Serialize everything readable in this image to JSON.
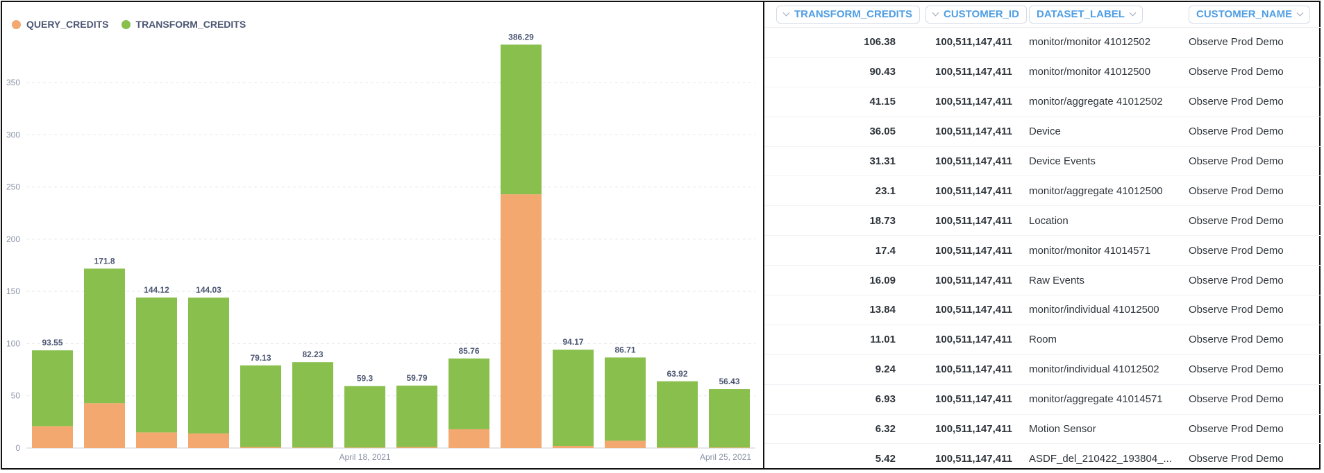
{
  "colors": {
    "query": "#f2a86f",
    "transform": "#88bf4d",
    "header_text": "#509ee3",
    "axis_text": "#8a93a6"
  },
  "chart_data": {
    "type": "bar",
    "stacked": true,
    "legend": [
      "QUERY_CREDITS",
      "TRANSFORM_CREDITS"
    ],
    "legend_position": "top-left",
    "x_tick_labels": [
      {
        "index": 6.5,
        "label": "April 18, 2021"
      },
      {
        "index": 13.5,
        "label": "April 25, 2021"
      }
    ],
    "ylim": [
      0,
      370
    ],
    "yticks": [
      0,
      50,
      100,
      150,
      200,
      250,
      300,
      350
    ],
    "grid": true,
    "totals": [
      93.55,
      171.8,
      144.12,
      144.03,
      79.13,
      82.23,
      59.3,
      59.79,
      85.76,
      386.29,
      94.17,
      86.71,
      63.92,
      56.43
    ],
    "series": [
      {
        "name": "QUERY_CREDITS",
        "values": [
          21,
          43,
          15,
          14,
          1,
          0.5,
          0.5,
          1,
          18,
          243,
          2,
          7,
          0.5,
          0.5
        ]
      },
      {
        "name": "TRANSFORM_CREDITS",
        "values": [
          72.55,
          128.8,
          129.12,
          130.03,
          78.13,
          81.73,
          58.8,
          58.79,
          67.76,
          143.29,
          92.17,
          79.71,
          63.42,
          55.93
        ]
      }
    ]
  },
  "table": {
    "columns": [
      "TRANSFORM_CREDITS",
      "CUSTOMER_ID",
      "DATASET_LABEL",
      "CUSTOMER_NAME"
    ],
    "rows": [
      [
        "106.38",
        "100,511,147,411",
        "monitor/monitor 41012502",
        "Observe Prod Demo"
      ],
      [
        "90.43",
        "100,511,147,411",
        "monitor/monitor 41012500",
        "Observe Prod Demo"
      ],
      [
        "41.15",
        "100,511,147,411",
        "monitor/aggregate 41012502",
        "Observe Prod Demo"
      ],
      [
        "36.05",
        "100,511,147,411",
        "Device",
        "Observe Prod Demo"
      ],
      [
        "31.31",
        "100,511,147,411",
        "Device Events",
        "Observe Prod Demo"
      ],
      [
        "23.1",
        "100,511,147,411",
        "monitor/aggregate 41012500",
        "Observe Prod Demo"
      ],
      [
        "18.73",
        "100,511,147,411",
        "Location",
        "Observe Prod Demo"
      ],
      [
        "17.4",
        "100,511,147,411",
        "monitor/monitor 41014571",
        "Observe Prod Demo"
      ],
      [
        "16.09",
        "100,511,147,411",
        "Raw Events",
        "Observe Prod Demo"
      ],
      [
        "13.84",
        "100,511,147,411",
        "monitor/individual 41012500",
        "Observe Prod Demo"
      ],
      [
        "11.01",
        "100,511,147,411",
        "Room",
        "Observe Prod Demo"
      ],
      [
        "9.24",
        "100,511,147,411",
        "monitor/individual 41012502",
        "Observe Prod Demo"
      ],
      [
        "6.93",
        "100,511,147,411",
        "monitor/aggregate 41014571",
        "Observe Prod Demo"
      ],
      [
        "6.32",
        "100,511,147,411",
        "Motion Sensor",
        "Observe Prod Demo"
      ],
      [
        "5.42",
        "100,511,147,411",
        "ASDF_del_210422_193804_...",
        "Observe Prod Demo"
      ]
    ]
  }
}
